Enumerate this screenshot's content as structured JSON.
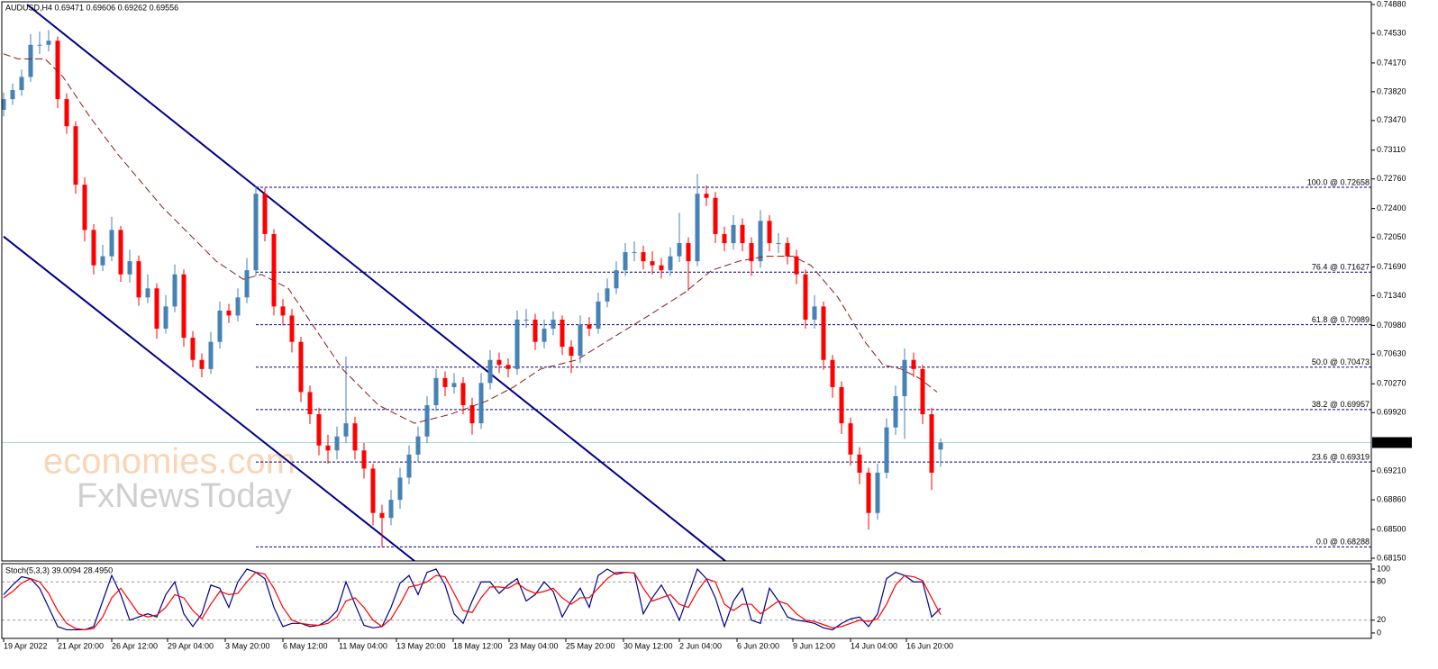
{
  "chart_data": {
    "type": "candlestick",
    "title": "AUDUSD,H4  0.69471 0.69606 0.69262 0.69556",
    "watermark": [
      "economies.com",
      "FxNewsToday"
    ],
    "up_color": "#4682b4",
    "down_color": "#ff0000",
    "xlim": [
      -0.2,
      151.8
    ],
    "ylim": [
      0.68117,
      0.74913
    ],
    "yticks": [
      {
        "value": 0.7488,
        "label": "0.74880"
      },
      {
        "value": 0.7453,
        "label": "0.74530"
      },
      {
        "value": 0.7417,
        "label": "0.74170"
      },
      {
        "value": 0.7382,
        "label": "0.73820"
      },
      {
        "value": 0.7347,
        "label": "0.73470"
      },
      {
        "value": 0.7311,
        "label": "0.73110"
      },
      {
        "value": 0.7276,
        "label": "0.72760"
      },
      {
        "value": 0.724,
        "label": "0.72400"
      },
      {
        "value": 0.7205,
        "label": "0.72050"
      },
      {
        "value": 0.7169,
        "label": "0.71690"
      },
      {
        "value": 0.7134,
        "label": "0.71340"
      },
      {
        "value": 0.7098,
        "label": "0.70980"
      },
      {
        "value": 0.7063,
        "label": "0.70630"
      },
      {
        "value": 0.7027,
        "label": "0.70270"
      },
      {
        "value": 0.6992,
        "label": "0.69920"
      },
      {
        "value": 0.6921,
        "label": "0.69210"
      },
      {
        "value": 0.6886,
        "label": "0.68860"
      },
      {
        "value": 0.685,
        "label": "0.68500"
      },
      {
        "value": 0.6815,
        "label": "0.68150"
      }
    ],
    "xticks": [
      {
        "value": 0,
        "label": "19 Apr 2022"
      },
      {
        "value": 6,
        "label": "21 Apr 20:00"
      },
      {
        "value": 12,
        "label": "26 Apr 12:00"
      },
      {
        "value": 18.2,
        "label": "29 Apr 04:00"
      },
      {
        "value": 24.6,
        "label": "3 May 20:00"
      },
      {
        "value": 31,
        "label": "6 May 12:00"
      },
      {
        "value": 37.2,
        "label": "11 May 04:00"
      },
      {
        "value": 43.6,
        "label": "13 May 20:00"
      },
      {
        "value": 49.9,
        "label": "18 May 12:00"
      },
      {
        "value": 56.1,
        "label": "23 May 04:00"
      },
      {
        "value": 62.4,
        "label": "25 May 20:00"
      },
      {
        "value": 68.8,
        "label": "30 May 12:00"
      },
      {
        "value": 75,
        "label": "2 Jun 04:00"
      },
      {
        "value": 81.4,
        "label": "6 Jun 20:00"
      },
      {
        "value": 87.6,
        "label": "9 Jun 12:00"
      },
      {
        "value": 94,
        "label": "14 Jun 04:00"
      },
      {
        "value": 100.2,
        "label": "16 Jun 20:00"
      }
    ],
    "ohlc": [
      [
        0.736,
        0.7381,
        0.7352,
        0.7373
      ],
      [
        0.7373,
        0.7392,
        0.7366,
        0.7384
      ],
      [
        0.7384,
        0.7409,
        0.7377,
        0.74
      ],
      [
        0.74,
        0.7452,
        0.7394,
        0.7439
      ],
      [
        0.7439,
        0.7455,
        0.7428,
        0.7439
      ],
      [
        0.7439,
        0.7457,
        0.7431,
        0.7444
      ],
      [
        0.7444,
        0.7449,
        0.7362,
        0.7373
      ],
      [
        0.7373,
        0.738,
        0.7331,
        0.734
      ],
      [
        0.734,
        0.7346,
        0.7258,
        0.7269
      ],
      [
        0.7269,
        0.7278,
        0.72,
        0.7214
      ],
      [
        0.7214,
        0.7221,
        0.716,
        0.7171
      ],
      [
        0.7171,
        0.7196,
        0.7164,
        0.7182
      ],
      [
        0.7182,
        0.723,
        0.7176,
        0.7214
      ],
      [
        0.7214,
        0.7219,
        0.7151,
        0.716
      ],
      [
        0.716,
        0.719,
        0.715,
        0.7176
      ],
      [
        0.7176,
        0.7183,
        0.7122,
        0.7132
      ],
      [
        0.7132,
        0.716,
        0.7125,
        0.7143
      ],
      [
        0.7143,
        0.7149,
        0.7082,
        0.7094
      ],
      [
        0.7094,
        0.7135,
        0.7088,
        0.7121
      ],
      [
        0.7121,
        0.7172,
        0.7114,
        0.716
      ],
      [
        0.716,
        0.7166,
        0.7072,
        0.7083
      ],
      [
        0.7083,
        0.7091,
        0.7047,
        0.7056
      ],
      [
        0.7056,
        0.7064,
        0.7035,
        0.7045
      ],
      [
        0.7045,
        0.709,
        0.7039,
        0.7078
      ],
      [
        0.7078,
        0.7127,
        0.707,
        0.7116
      ],
      [
        0.7116,
        0.7124,
        0.7101,
        0.711
      ],
      [
        0.711,
        0.7143,
        0.7103,
        0.7132
      ],
      [
        0.7132,
        0.718,
        0.7125,
        0.7165
      ],
      [
        0.7165,
        0.7268,
        0.7158,
        0.7258
      ],
      [
        0.7258,
        0.7265,
        0.72,
        0.7209
      ],
      [
        0.7209,
        0.7215,
        0.711,
        0.7121
      ],
      [
        0.7121,
        0.713,
        0.7098,
        0.711
      ],
      [
        0.711,
        0.7118,
        0.7065,
        0.7078
      ],
      [
        0.7078,
        0.7084,
        0.7005,
        0.7017
      ],
      [
        0.7017,
        0.7025,
        0.6978,
        0.699
      ],
      [
        0.699,
        0.6998,
        0.694,
        0.6952
      ],
      [
        0.6952,
        0.6965,
        0.693,
        0.6946
      ],
      [
        0.6946,
        0.6975,
        0.6935,
        0.6963
      ],
      [
        0.6963,
        0.706,
        0.6955,
        0.6979
      ],
      [
        0.6979,
        0.6987,
        0.6935,
        0.6946
      ],
      [
        0.6946,
        0.6955,
        0.6912,
        0.6924
      ],
      [
        0.6924,
        0.693,
        0.6855,
        0.687
      ],
      [
        0.687,
        0.688,
        0.6829,
        0.6864
      ],
      [
        0.6864,
        0.6898,
        0.6855,
        0.6886
      ],
      [
        0.6886,
        0.6925,
        0.6875,
        0.6913
      ],
      [
        0.6913,
        0.6952,
        0.6905,
        0.6941
      ],
      [
        0.6941,
        0.6975,
        0.6932,
        0.6963
      ],
      [
        0.6963,
        0.7012,
        0.6955,
        0.7001
      ],
      [
        0.7001,
        0.7045,
        0.6994,
        0.7034
      ],
      [
        0.7034,
        0.7042,
        0.7012,
        0.7023
      ],
      [
        0.7023,
        0.704,
        0.7015,
        0.7028
      ],
      [
        0.7028,
        0.7035,
        0.699,
        0.7001
      ],
      [
        0.7001,
        0.701,
        0.6965,
        0.6979
      ],
      [
        0.6979,
        0.704,
        0.6972,
        0.7028
      ],
      [
        0.7028,
        0.7068,
        0.702,
        0.7056
      ],
      [
        0.7056,
        0.7065,
        0.704,
        0.705
      ],
      [
        0.705,
        0.7058,
        0.7035,
        0.7045
      ],
      [
        0.7045,
        0.7116,
        0.7038,
        0.7105
      ],
      [
        0.7105,
        0.7118,
        0.7095,
        0.7105
      ],
      [
        0.7105,
        0.7112,
        0.7068,
        0.7078
      ],
      [
        0.7078,
        0.7105,
        0.707,
        0.7094
      ],
      [
        0.7094,
        0.7115,
        0.7086,
        0.7105
      ],
      [
        0.7105,
        0.711,
        0.7062,
        0.7072
      ],
      [
        0.7072,
        0.708,
        0.704,
        0.7061
      ],
      [
        0.7061,
        0.711,
        0.7052,
        0.7099
      ],
      [
        0.7099,
        0.7108,
        0.7085,
        0.7094
      ],
      [
        0.7094,
        0.7138,
        0.7088,
        0.7127
      ],
      [
        0.7127,
        0.7155,
        0.712,
        0.7143
      ],
      [
        0.7143,
        0.7176,
        0.7136,
        0.7165
      ],
      [
        0.7165,
        0.7198,
        0.7158,
        0.7187
      ],
      [
        0.7187,
        0.72,
        0.7176,
        0.7187
      ],
      [
        0.7187,
        0.7195,
        0.7166,
        0.7176
      ],
      [
        0.7176,
        0.7188,
        0.716,
        0.7171
      ],
      [
        0.7171,
        0.718,
        0.7155,
        0.7165
      ],
      [
        0.7165,
        0.7193,
        0.7158,
        0.7182
      ],
      [
        0.7182,
        0.7235,
        0.7175,
        0.7198
      ],
      [
        0.7198,
        0.7205,
        0.714,
        0.7176
      ],
      [
        0.7176,
        0.7282,
        0.717,
        0.7258
      ],
      [
        0.7258,
        0.7268,
        0.7243,
        0.7253
      ],
      [
        0.7253,
        0.726,
        0.7198,
        0.7209
      ],
      [
        0.7209,
        0.7218,
        0.7188,
        0.7198
      ],
      [
        0.7198,
        0.7232,
        0.719,
        0.722
      ],
      [
        0.722,
        0.7228,
        0.7188,
        0.7198
      ],
      [
        0.7198,
        0.7205,
        0.7158,
        0.7176
      ],
      [
        0.7176,
        0.7238,
        0.7168,
        0.7225
      ],
      [
        0.7225,
        0.7232,
        0.7188,
        0.7198
      ],
      [
        0.7198,
        0.721,
        0.7186,
        0.7198
      ],
      [
        0.7198,
        0.7205,
        0.7172,
        0.7182
      ],
      [
        0.7182,
        0.719,
        0.7148,
        0.716
      ],
      [
        0.716,
        0.7166,
        0.7094,
        0.7105
      ],
      [
        0.7105,
        0.7135,
        0.7094,
        0.7121
      ],
      [
        0.7121,
        0.7127,
        0.7044,
        0.7056
      ],
      [
        0.7056,
        0.7062,
        0.701,
        0.7023
      ],
      [
        0.7023,
        0.703,
        0.6966,
        0.6979
      ],
      [
        0.6979,
        0.6986,
        0.6928,
        0.6941
      ],
      [
        0.6941,
        0.695,
        0.6905,
        0.6919
      ],
      [
        0.6919,
        0.6925,
        0.685,
        0.687
      ],
      [
        0.687,
        0.693,
        0.6862,
        0.6919
      ],
      [
        0.6919,
        0.6985,
        0.6912,
        0.6974
      ],
      [
        0.6974,
        0.7025,
        0.6965,
        0.7012
      ],
      [
        0.7012,
        0.707,
        0.696,
        0.7056
      ],
      [
        0.7056,
        0.7065,
        0.7035,
        0.7045
      ],
      [
        0.7045,
        0.705,
        0.6978,
        0.699
      ],
      [
        0.699,
        0.6998,
        0.6898,
        0.6919
      ],
      [
        0.69471,
        0.69606,
        0.69262,
        0.69556
      ]
    ],
    "ma": {
      "color": "#8b1a1a",
      "x": [
        0,
        1.6,
        4.6,
        6.6,
        9.6,
        12.6,
        17.6,
        20.6,
        23.6,
        26.6,
        28.6,
        31.6,
        33.6,
        37.6,
        41.6,
        45.6,
        49.6,
        53.6,
        56.6,
        59.6,
        63.6,
        67.6,
        71.6,
        75.6,
        78.6,
        81.6,
        84.6,
        87.6,
        89.6,
        92.6,
        95.6,
        97.6,
        99.6,
        101.6,
        103.6
      ],
      "values": [
        0.7428,
        0.7422,
        0.7422,
        0.74,
        0.7351,
        0.7307,
        0.7242,
        0.7209,
        0.7176,
        0.7154,
        0.716,
        0.7143,
        0.711,
        0.7045,
        0.7001,
        0.6979,
        0.699,
        0.7006,
        0.7023,
        0.7045,
        0.7056,
        0.7083,
        0.711,
        0.7138,
        0.7165,
        0.7176,
        0.7182,
        0.7182,
        0.7171,
        0.7132,
        0.7078,
        0.705,
        0.7045,
        0.7034,
        0.7017
      ]
    },
    "channel_color": "#00008b",
    "channels": [
      {
        "x": [
          2.6,
          80.1
        ],
        "values": [
          0.7488,
          0.68117
        ]
      },
      {
        "x": [
          0,
          45.6
        ],
        "values": [
          0.7206,
          0.68117
        ]
      }
    ],
    "fib_color": "#00008b",
    "fib_levels": [
      {
        "value": 0.72658,
        "label": "100.0 @ 0.72658"
      },
      {
        "value": 0.71627,
        "label": "76.4 @ 0.71627"
      },
      {
        "value": 0.70989,
        "label": "61.8 @ 0.70989"
      },
      {
        "value": 0.70473,
        "label": "50.0 @ 0.70473"
      },
      {
        "value": 0.69957,
        "label": "38.2 @ 0.69957"
      },
      {
        "value": 0.69319,
        "label": "23.6 @ 0.69319"
      },
      {
        "value": 0.68288,
        "label": "0.0 @ 0.68288"
      }
    ],
    "last_price": {
      "value": 0.69556,
      "label": "0.69556"
    },
    "stochastic": {
      "label": "Stoch(5,3,3) 39.0094 28.4950",
      "ylim": [
        -8.5,
        108.5
      ],
      "yticks": [
        0,
        20,
        80,
        100
      ],
      "levels": [
        20,
        80
      ],
      "series": [
        {
          "color": "#00008b",
          "values": [
            60,
            75,
            88,
            85,
            70,
            40,
            10,
            5,
            5,
            5,
            10,
            50,
            90,
            60,
            20,
            25,
            30,
            25,
            60,
            80,
            30,
            10,
            30,
            75,
            70,
            40,
            80,
            100,
            95,
            85,
            40,
            10,
            15,
            15,
            10,
            12,
            20,
            35,
            80,
            45,
            12,
            8,
            10,
            40,
            78,
            90,
            60,
            95,
            100,
            75,
            30,
            15,
            50,
            80,
            80,
            62,
            75,
            85,
            50,
            60,
            80,
            65,
            25,
            50,
            70,
            40,
            90,
            100,
            92,
            95,
            94,
            30,
            55,
            75,
            50,
            20,
            60,
            100,
            85,
            55,
            10,
            50,
            70,
            20,
            15,
            70,
            50,
            25,
            20,
            18,
            15,
            8,
            5,
            15,
            22,
            25,
            10,
            30,
            85,
            95,
            90,
            80,
            80,
            25,
            39.0094
          ]
        },
        {
          "color": "#ff0000",
          "values": [
            55,
            65,
            78,
            85,
            80,
            62,
            35,
            15,
            7,
            5,
            7,
            25,
            55,
            70,
            50,
            30,
            25,
            28,
            40,
            60,
            55,
            35,
            22,
            45,
            65,
            60,
            62,
            80,
            95,
            92,
            70,
            40,
            20,
            15,
            13,
            12,
            15,
            25,
            50,
            55,
            40,
            20,
            10,
            22,
            45,
            72,
            75,
            80,
            90,
            88,
            62,
            35,
            32,
            55,
            72,
            72,
            70,
            78,
            68,
            62,
            65,
            70,
            55,
            45,
            55,
            55,
            70,
            85,
            95,
            95,
            94,
            70,
            50,
            55,
            60,
            45,
            40,
            65,
            85,
            80,
            45,
            35,
            45,
            45,
            30,
            40,
            50,
            45,
            30,
            20,
            18,
            13,
            8,
            10,
            15,
            20,
            18,
            22,
            45,
            75,
            90,
            88,
            82,
            55,
            28.495
          ]
        }
      ]
    }
  }
}
